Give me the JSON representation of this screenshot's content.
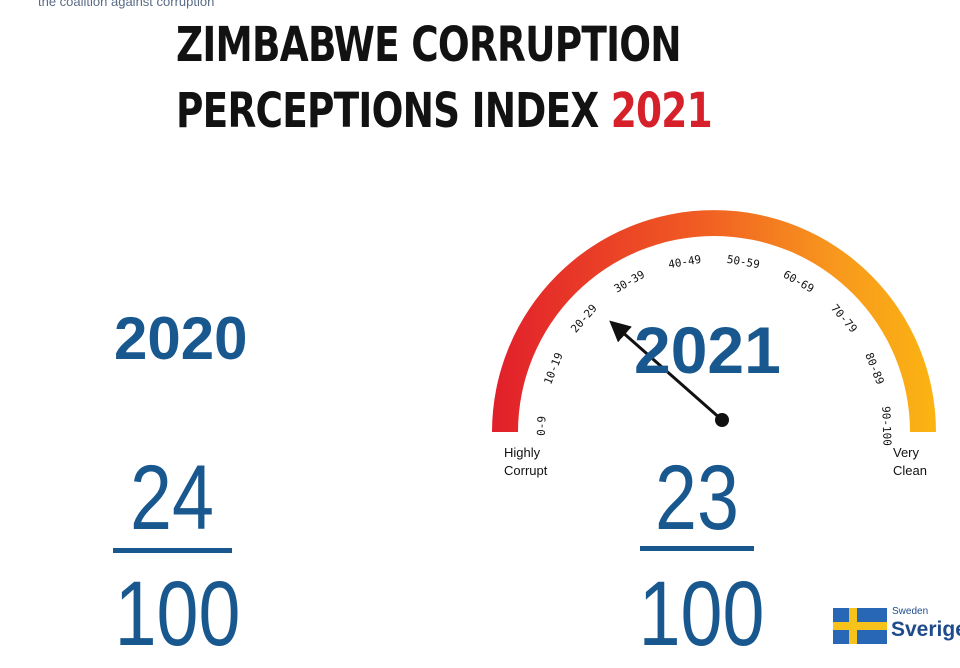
{
  "header": {
    "tagline": "the coalition against corruption",
    "title_line1": "ZIMBABWE CORRUPTION",
    "title_line2": "PERCEPTIONS INDEX ",
    "title_year": "2021"
  },
  "scores": {
    "year_2020": {
      "label": "2020",
      "score": "24",
      "out_of": "100"
    },
    "year_2021": {
      "label": "2021",
      "score": "23",
      "out_of": "100"
    }
  },
  "gauge": {
    "ranges": [
      "0-9",
      "10-19",
      "20-29",
      "30-39",
      "40-49",
      "50-59",
      "60-69",
      "70-79",
      "80-89",
      "90-100"
    ],
    "left_label_line1": "Highly",
    "left_label_line2": "Corrupt",
    "right_label_line1": "Very",
    "right_label_line2": "Clean",
    "needle_value": 23,
    "min": 0,
    "max": 100,
    "gradient_colors": [
      "#e2202b",
      "#f05a23",
      "#f8991d",
      "#fbb412"
    ],
    "needle_color": "#111111"
  },
  "logo": {
    "sweden_small": "Sweden",
    "sweden_big": "Sverige",
    "flag_colors": [
      "#2767b6",
      "#f7c21a"
    ]
  }
}
